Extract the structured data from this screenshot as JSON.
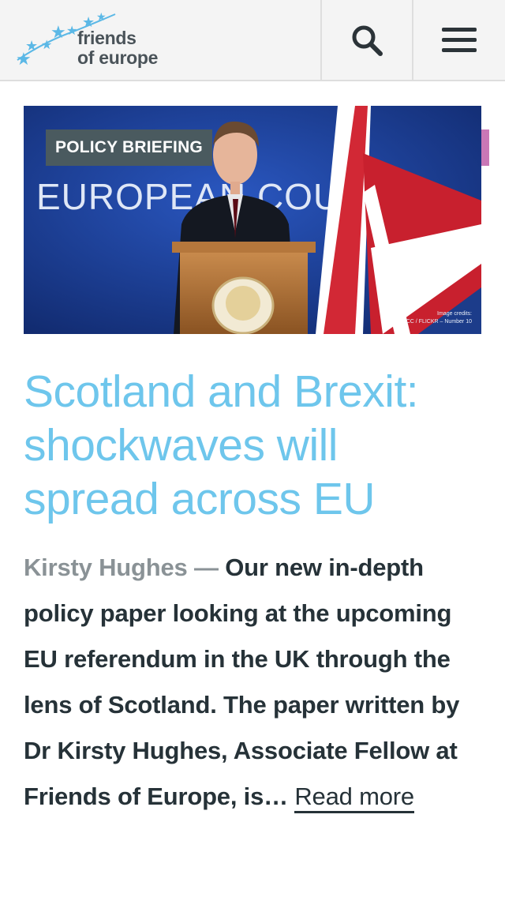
{
  "header": {
    "logo": {
      "line1": "friends",
      "line2": "of europe"
    },
    "search_icon": "search-icon",
    "menu_icon": "hamburger-menu-icon"
  },
  "article": {
    "hero": {
      "badge": "POLICY BRIEFING",
      "backdrop_text": "EUROPEAN COUNCIL",
      "credits_line1": "Image credits:",
      "credits_line2": "CC / FLICKR – Number 10"
    },
    "title": "Scotland and Brexit: shockwaves will spread across EU",
    "author": "Kirsty Hughes",
    "separator": "—",
    "excerpt": "Our new in-depth policy paper looking at the upcoming EU referendum in the UK through the lens of Scotland. The paper written by Dr Kirsty Hughes, Associate Fellow at Friends of Europe, is…",
    "read_more": "Read more"
  },
  "colors": {
    "title": "#6ec6ec",
    "badge_bg": "#4a5a5f",
    "accent_pink": "#c977b6",
    "logo_stars": "#5bb8e6"
  }
}
